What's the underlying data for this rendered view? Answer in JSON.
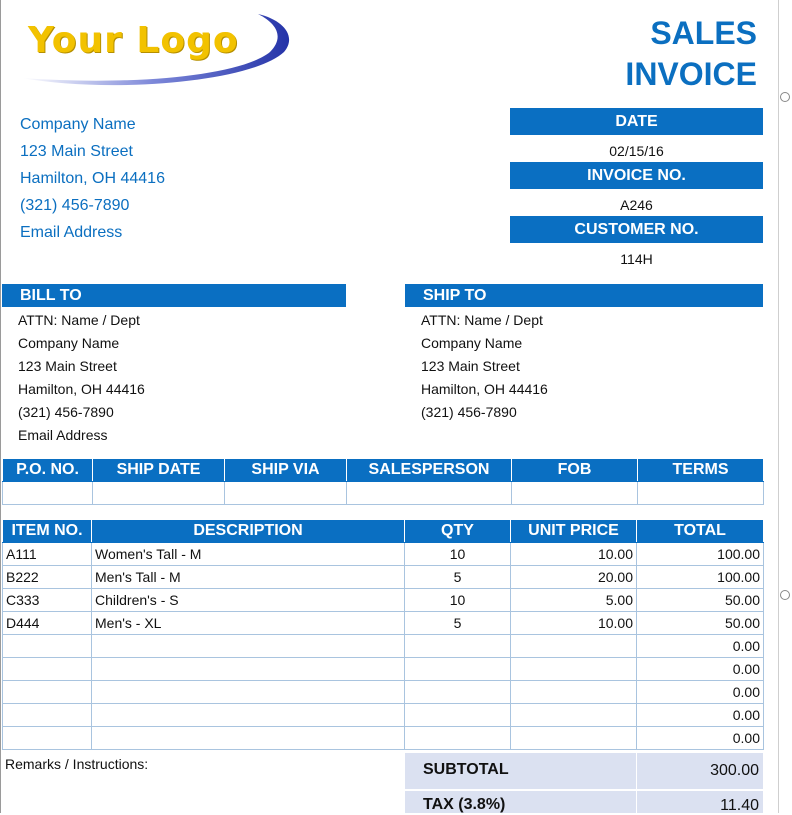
{
  "logo": {
    "text": "Your Logo"
  },
  "title": {
    "line1": "SALES",
    "line2": "INVOICE"
  },
  "company": {
    "name": "Company Name",
    "street": "123 Main Street",
    "city": "Hamilton, OH  44416",
    "phone": "(321) 456-7890",
    "email": "Email Address"
  },
  "meta": {
    "date_label": "DATE",
    "date_value": "02/15/16",
    "invoice_label": "INVOICE NO.",
    "invoice_value": "A246",
    "customer_label": "CUSTOMER NO.",
    "customer_value": "114H"
  },
  "bill_to": {
    "label": "BILL TO",
    "attn": "ATTN: Name / Dept",
    "company": "Company Name",
    "street": "123 Main Street",
    "city": "Hamilton, OH  44416",
    "phone": "(321) 456-7890",
    "email": "Email Address"
  },
  "ship_to": {
    "label": "SHIP TO",
    "attn": "ATTN: Name / Dept",
    "company": "Company Name",
    "street": "123 Main Street",
    "city": "Hamilton, OH  44416",
    "phone": "(321) 456-7890"
  },
  "order_headers": [
    "P.O. NO.",
    "SHIP DATE",
    "SHIP VIA",
    "SALESPERSON",
    "FOB",
    "TERMS"
  ],
  "items_headers": [
    "ITEM NO.",
    "DESCRIPTION",
    "QTY",
    "UNIT PRICE",
    "TOTAL"
  ],
  "items": [
    {
      "item": "A111",
      "desc": "Women's Tall - M",
      "qty": "10",
      "price": "10.00",
      "total": "100.00"
    },
    {
      "item": "B222",
      "desc": "Men's Tall - M",
      "qty": "5",
      "price": "20.00",
      "total": "100.00"
    },
    {
      "item": "C333",
      "desc": "Children's - S",
      "qty": "10",
      "price": "5.00",
      "total": "50.00"
    },
    {
      "item": "D444",
      "desc": "Men's - XL",
      "qty": "5",
      "price": "10.00",
      "total": "50.00"
    },
    {
      "item": "",
      "desc": "",
      "qty": "",
      "price": "",
      "total": "0.00"
    },
    {
      "item": "",
      "desc": "",
      "qty": "",
      "price": "",
      "total": "0.00"
    },
    {
      "item": "",
      "desc": "",
      "qty": "",
      "price": "",
      "total": "0.00"
    },
    {
      "item": "",
      "desc": "",
      "qty": "",
      "price": "",
      "total": "0.00"
    },
    {
      "item": "",
      "desc": "",
      "qty": "",
      "price": "",
      "total": "0.00"
    }
  ],
  "remarks_label": "Remarks / Instructions:",
  "totals": {
    "subtotal_label": "SUBTOTAL",
    "subtotal_value": "300.00",
    "tax_label": "TAX (3.8%)",
    "tax_value": "11.40"
  },
  "colors": {
    "accent": "#0a6fc2",
    "logo": "#f2c200",
    "totals_bg": "#dbe1f1"
  }
}
